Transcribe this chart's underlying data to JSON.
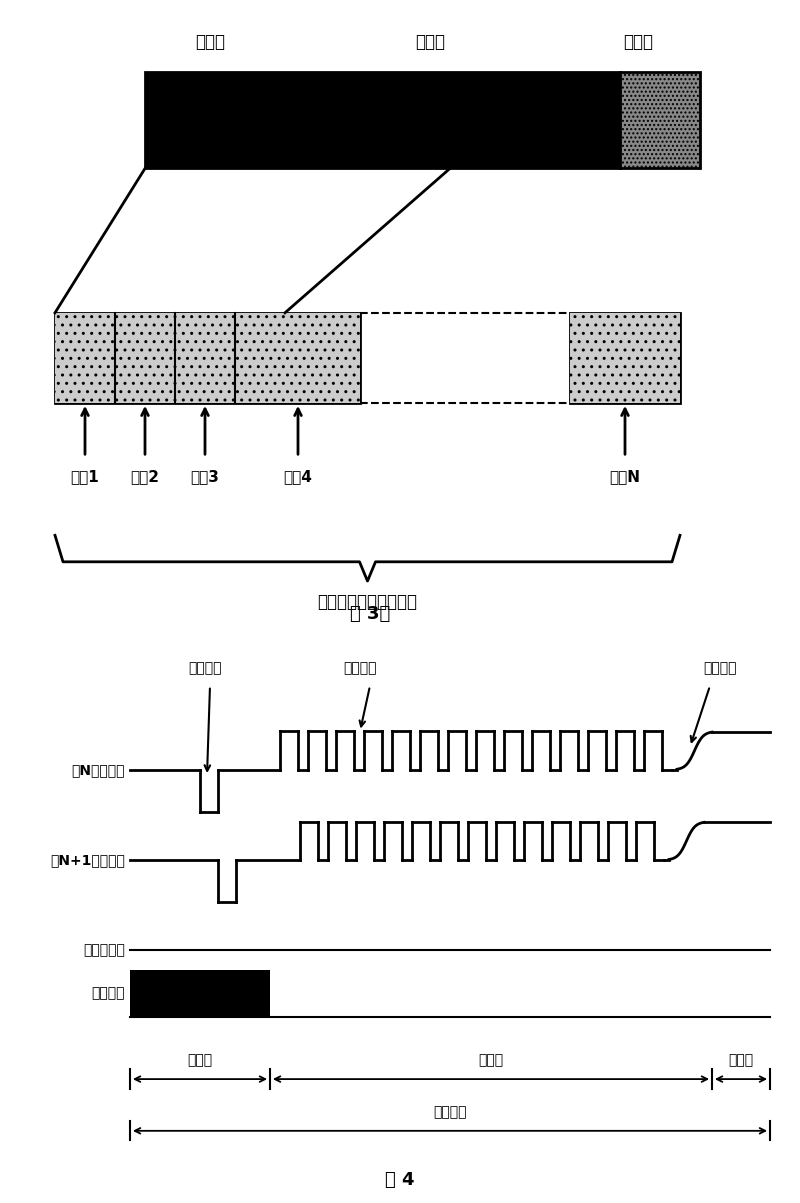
{
  "fig3_title_labels": [
    "扫描期",
    "维持期",
    "擦除期"
  ],
  "fig3_caption": "图 3、",
  "fig4_caption": "图 4",
  "subfield_labels": [
    "子场1",
    "子场2",
    "子场3",
    "子场4",
    "子场N"
  ],
  "one_frame_text": "一帧视频图像显示时间",
  "row_n_label": "第N个行电极",
  "row_n1_label": "第N+1个行电极",
  "grid_label": "栅网板电极",
  "addr_label": "寻址电极",
  "scan_pulse_label": "扫描脉冲",
  "sustain_pulse_label": "维持脉冲",
  "erase_pulse_label": "擦除脉冲",
  "addr_period_label": "寻址期",
  "sustain_period_label": "维持期",
  "erase_period_label": "擦除期",
  "one_subfield_label": "一个子场",
  "bg_color": "#ffffff"
}
